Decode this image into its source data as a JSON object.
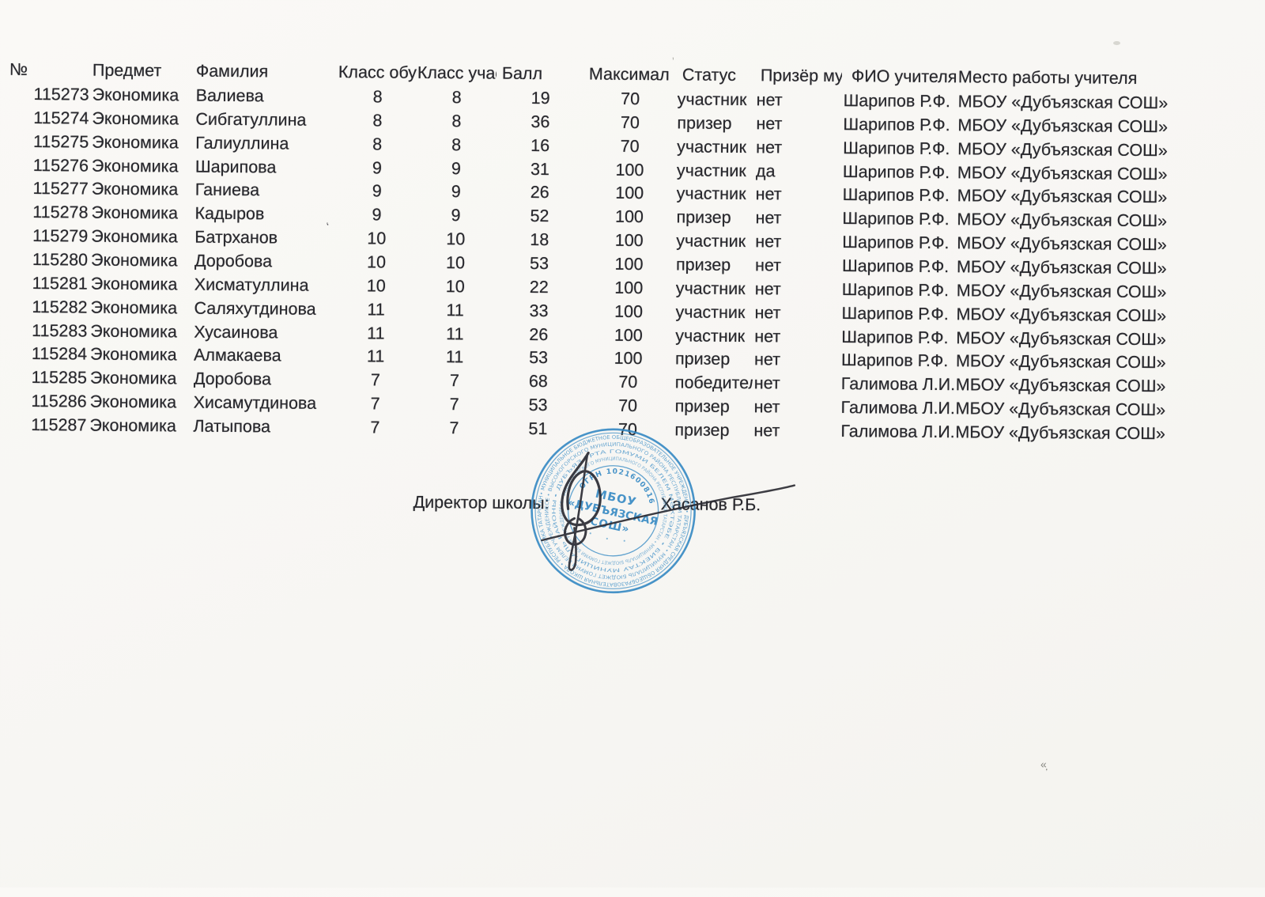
{
  "table": {
    "headers": [
      "№",
      "Предмет",
      "Фамилия",
      "Класс обуч",
      "Класс учас",
      "Балл",
      "Максимал",
      "Статус",
      "Призёр му",
      "ФИО учителя",
      "Место работы учителя"
    ],
    "rows": [
      [
        "115273",
        "Экономика",
        "Валиева",
        "8",
        "8",
        "19",
        "70",
        "участник",
        "нет",
        "Шарипов Р.Ф.",
        "МБОУ «Дубъязская СОШ»"
      ],
      [
        "115274",
        "Экономика",
        "Сибгатуллина",
        "8",
        "8",
        "36",
        "70",
        "призер",
        "нет",
        "Шарипов Р.Ф.",
        "МБОУ «Дубъязская СОШ»"
      ],
      [
        "115275",
        "Экономика",
        "Галиуллина",
        "8",
        "8",
        "16",
        "70",
        "участник",
        "нет",
        "Шарипов Р.Ф.",
        "МБОУ «Дубъязская СОШ»"
      ],
      [
        "115276",
        "Экономика",
        "Шарипова",
        "9",
        "9",
        "31",
        "100",
        "участник",
        "да",
        "Шарипов Р.Ф.",
        "МБОУ «Дубъязская СОШ»"
      ],
      [
        "115277",
        "Экономика",
        "Ганиева",
        "9",
        "9",
        "26",
        "100",
        "участник",
        "нет",
        "Шарипов Р.Ф.",
        "МБОУ «Дубъязская СОШ»"
      ],
      [
        "115278",
        "Экономика",
        "Кадыров",
        "9",
        "9",
        "52",
        "100",
        "призер",
        "нет",
        "Шарипов Р.Ф.",
        "МБОУ «Дубъязская СОШ»"
      ],
      [
        "115279",
        "Экономика",
        "Батрханов",
        "10",
        "10",
        "18",
        "100",
        "участник",
        "нет",
        "Шарипов Р.Ф.",
        "МБОУ «Дубъязская СОШ»"
      ],
      [
        "115280",
        "Экономика",
        "Доробова",
        "10",
        "10",
        "53",
        "100",
        "призер",
        "нет",
        "Шарипов Р.Ф.",
        "МБОУ «Дубъязская СОШ»"
      ],
      [
        "115281",
        "Экономика",
        "Хисматуллина",
        "10",
        "10",
        "22",
        "100",
        "участник",
        "нет",
        "Шарипов Р.Ф.",
        "МБОУ «Дубъязская СОШ»"
      ],
      [
        "115282",
        "Экономика",
        "Саляхутдинова",
        "11",
        "11",
        "33",
        "100",
        "участник",
        "нет",
        "Шарипов Р.Ф.",
        "МБОУ «Дубъязская СОШ»"
      ],
      [
        "115283",
        "Экономика",
        "Хусаинова",
        "11",
        "11",
        "26",
        "100",
        "участник",
        "нет",
        "Шарипов Р.Ф.",
        "МБОУ «Дубъязская СОШ»"
      ],
      [
        "115284",
        "Экономика",
        "Алмакаева",
        "11",
        "11",
        "53",
        "100",
        "призер",
        "нет",
        "Шарипов Р.Ф.",
        "МБОУ «Дубъязская СОШ»"
      ],
      [
        "115285",
        "Экономика",
        "Доробова",
        "7",
        "7",
        "68",
        "70",
        "победитель",
        "нет",
        "Галимова Л.И.",
        "МБОУ «Дубъязская СОШ»"
      ],
      [
        "115286",
        "Экономика",
        "Хисамутдинова",
        "7",
        "7",
        "53",
        "70",
        "призер",
        "нет",
        "Галимова Л.И.",
        "МБОУ «Дубъязская СОШ»"
      ],
      [
        "115287",
        "Экономика",
        "Латыпова",
        "7",
        "7",
        "51",
        "70",
        "призер",
        "нет",
        "Галимова Л.И.",
        "МБОУ «Дубъязская СОШ»"
      ]
    ]
  },
  "signature": {
    "label": "Директор школы:",
    "name": "Хасанов Р.Б."
  },
  "stamp": {
    "center_line1": "МБОУ",
    "center_line2": "«ДУБЪЯЗСКАЯ",
    "center_line3": "СОШ»",
    "ogrn_arc": "ОГРН 1021600816820",
    "ring_outer": "• МУНИЦИПАЛЬНОЕ БЮДЖЕТНОЕ ОБЩЕОБРАЗОВАТЕЛЬНОЕ УЧРЕЖДЕНИЕ • ДУБЪЯЗСКАЯ СРЕДНЯЯ ОБЩЕОБРАЗОВАТЕЛЬНАЯ ШКОЛА • РЕСПУБЛИКА ТАТАРСТАН",
    "ring_middle": "• ВЫСОКОГОРСКОГО МУНИЦИПАЛЬНОГО РАЙОНА РЕСПУБЛИКИ ТАТАРСТАН • МУНИЦИПАЛЬ БЮДЖЕТ ГОМУМИ БЕЛЕМ УЧРЕЖДЕНИЕСЕ",
    "ring_inner": "• ДУБЪЯЗ УРТА ГОМУМИ БЕЛЕМ МӘКТӘБЕ • БИЕКТАУ МУНИЦИПАЛЬ РАЙОНЫ",
    "color": "#2f86c2"
  },
  "colors": {
    "paper": "#f8f7f4",
    "ink": "#28282d",
    "stamp_blue": "#2f86c2",
    "pen": "#2c2c34"
  }
}
